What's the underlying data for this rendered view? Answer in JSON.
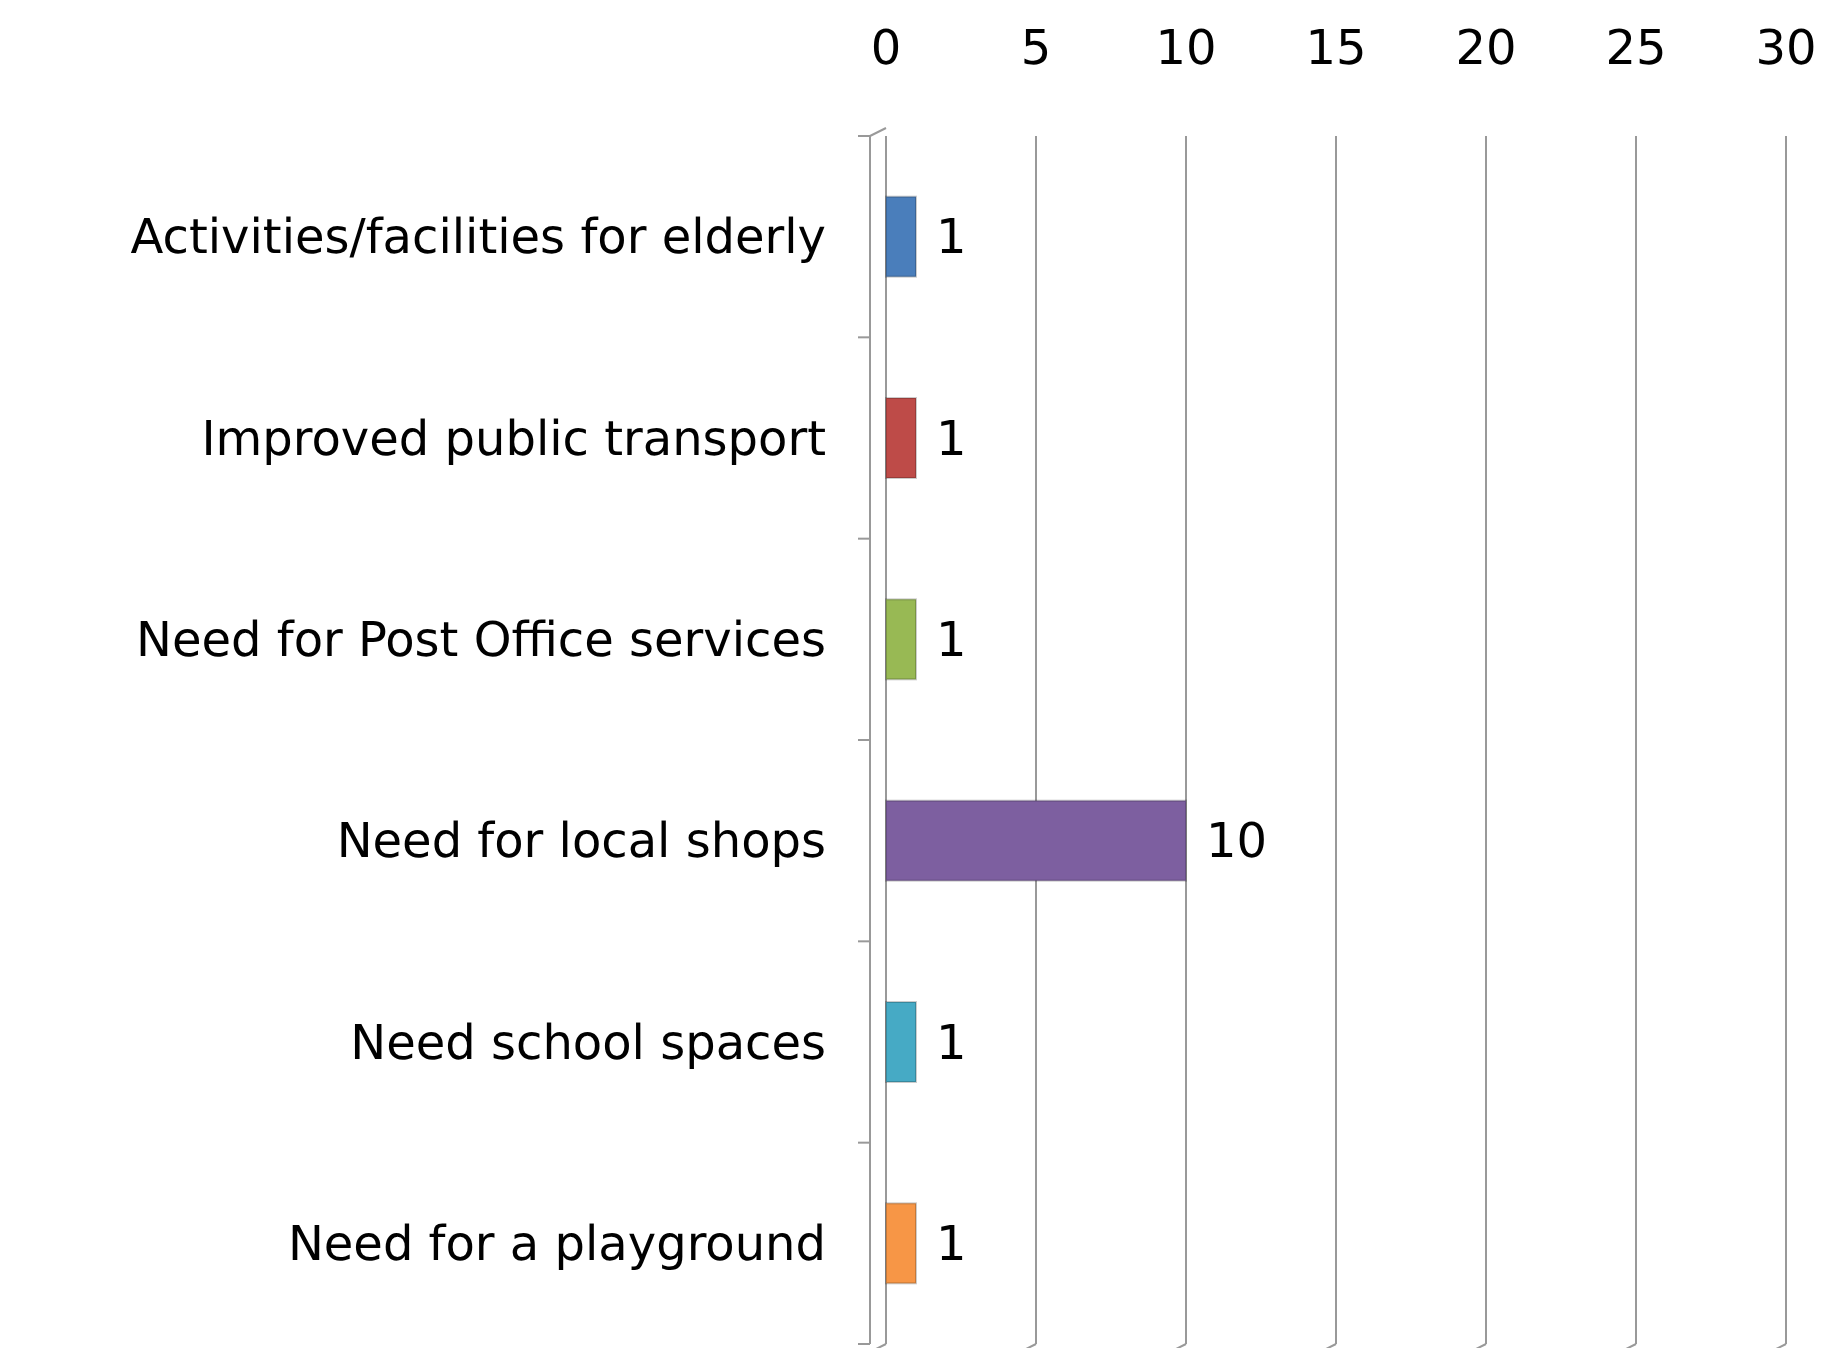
{
  "chart_data": {
    "type": "bar",
    "orientation": "horizontal",
    "categories": [
      "Activities/facilities for elderly",
      "Improved public transport",
      "Need for Post Office services",
      "Need for local shops",
      "Need school spaces",
      "Need for a playground"
    ],
    "values": [
      1,
      1,
      1,
      10,
      1,
      1
    ],
    "colors": [
      "#4a7ebb",
      "#be4b48",
      "#98b954",
      "#7d5fa0",
      "#46aac5",
      "#f79646"
    ],
    "xlim": [
      0,
      30
    ],
    "xticks": [
      0,
      5,
      10,
      15,
      20,
      25,
      30
    ],
    "grid": "x",
    "data_labels": true
  }
}
